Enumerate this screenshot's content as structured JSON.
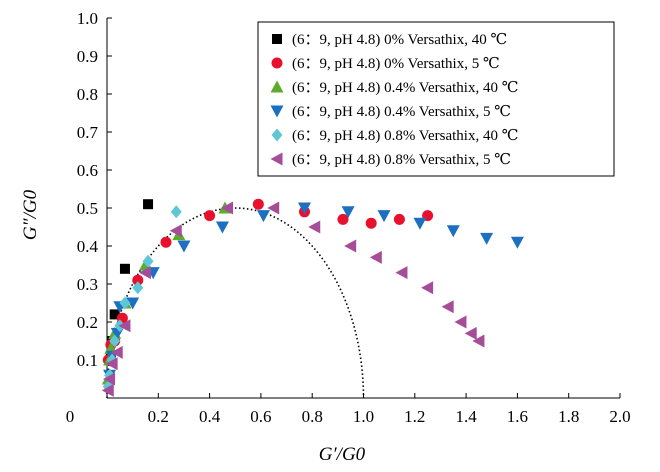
{
  "chart_data": {
    "type": "scatter",
    "title": "",
    "xlabel": "G′/G0",
    "ylabel": "G″/G0",
    "xlim": [
      0,
      2.0
    ],
    "ylim": [
      0,
      1.0
    ],
    "x_ticks": [
      "0",
      "0.2",
      "0.4",
      "0.6",
      "0.8",
      "1.0",
      "1.2",
      "1.4",
      "1.6",
      "1.8",
      "2.0"
    ],
    "y_ticks": [
      "0.1",
      "0.2",
      "0.3",
      "0.4",
      "0.5",
      "0.6",
      "0.7",
      "0.8",
      "0.9",
      "1.0"
    ],
    "grid": false,
    "legend_position": "top-right",
    "series": [
      {
        "name": "(6：9, pH 4.8) 0% Versathix, 40 ℃",
        "marker": "square",
        "color": "#000000",
        "points": [
          [
            0.015,
            0.11
          ],
          [
            0.02,
            0.15
          ],
          [
            0.03,
            0.22
          ],
          [
            0.07,
            0.34
          ],
          [
            0.16,
            0.51
          ]
        ]
      },
      {
        "name": "(6：9, pH 4.8) 0% Versathix, 5 ℃",
        "marker": "circle",
        "color": "#e8112d",
        "points": [
          [
            0.005,
            0.1
          ],
          [
            0.015,
            0.14
          ],
          [
            0.03,
            0.15
          ],
          [
            0.06,
            0.21
          ],
          [
            0.12,
            0.31
          ],
          [
            0.23,
            0.41
          ],
          [
            0.4,
            0.48
          ],
          [
            0.59,
            0.51
          ],
          [
            0.77,
            0.49
          ],
          [
            0.92,
            0.47
          ],
          [
            1.03,
            0.46
          ],
          [
            1.14,
            0.47
          ],
          [
            1.25,
            0.48
          ]
        ]
      },
      {
        "name": "(6：9, pH 4.8) 0.4% Versathix, 40 ℃",
        "marker": "triangle-up",
        "color": "#5dab2c",
        "points": [
          [
            0.005,
            0.05
          ],
          [
            0.01,
            0.1
          ],
          [
            0.015,
            0.13
          ],
          [
            0.03,
            0.17
          ],
          [
            0.07,
            0.25
          ],
          [
            0.15,
            0.35
          ],
          [
            0.28,
            0.43
          ],
          [
            0.46,
            0.5
          ]
        ]
      },
      {
        "name": "(6：9, pH 4.8) 0.4% Versathix, 5 ℃",
        "marker": "triangle-down",
        "color": "#1c6fc1",
        "points": [
          [
            0.01,
            0.06
          ],
          [
            0.02,
            0.11
          ],
          [
            0.04,
            0.17
          ],
          [
            0.05,
            0.24
          ],
          [
            0.1,
            0.25
          ],
          [
            0.18,
            0.33
          ],
          [
            0.3,
            0.4
          ],
          [
            0.45,
            0.45
          ],
          [
            0.61,
            0.48
          ],
          [
            0.77,
            0.5
          ],
          [
            0.94,
            0.49
          ],
          [
            1.08,
            0.48
          ],
          [
            1.22,
            0.46
          ],
          [
            1.35,
            0.44
          ],
          [
            1.48,
            0.42
          ],
          [
            1.6,
            0.41
          ]
        ]
      },
      {
        "name": "(6：9, pH 4.8) 0.8% Versathix, 40 ℃",
        "marker": "diamond",
        "color": "#5fc6d6",
        "points": [
          [
            0.005,
            0.03
          ],
          [
            0.01,
            0.06
          ],
          [
            0.02,
            0.1
          ],
          [
            0.03,
            0.15
          ],
          [
            0.05,
            0.19
          ],
          [
            0.07,
            0.25
          ],
          [
            0.12,
            0.29
          ],
          [
            0.16,
            0.36
          ],
          [
            0.27,
            0.49
          ]
        ]
      },
      {
        "name": "(6：9, pH 4.8) 0.8% Versathix, 5 ℃",
        "marker": "triangle-left",
        "color": "#a64d9a",
        "points": [
          [
            0.005,
            0.02
          ],
          [
            0.01,
            0.05
          ],
          [
            0.02,
            0.09
          ],
          [
            0.04,
            0.12
          ],
          [
            0.07,
            0.19
          ],
          [
            0.15,
            0.33
          ],
          [
            0.27,
            0.44
          ],
          [
            0.47,
            0.5
          ],
          [
            0.65,
            0.5
          ],
          [
            0.81,
            0.45
          ],
          [
            0.95,
            0.4
          ],
          [
            1.05,
            0.37
          ],
          [
            1.15,
            0.33
          ],
          [
            1.25,
            0.29
          ],
          [
            1.33,
            0.24
          ],
          [
            1.38,
            0.2
          ],
          [
            1.42,
            0.17
          ],
          [
            1.45,
            0.15
          ]
        ]
      }
    ],
    "reference_curve": {
      "style": "dotted",
      "color": "#000000",
      "center": [
        0.5,
        0
      ],
      "radius": 0.5
    }
  }
}
